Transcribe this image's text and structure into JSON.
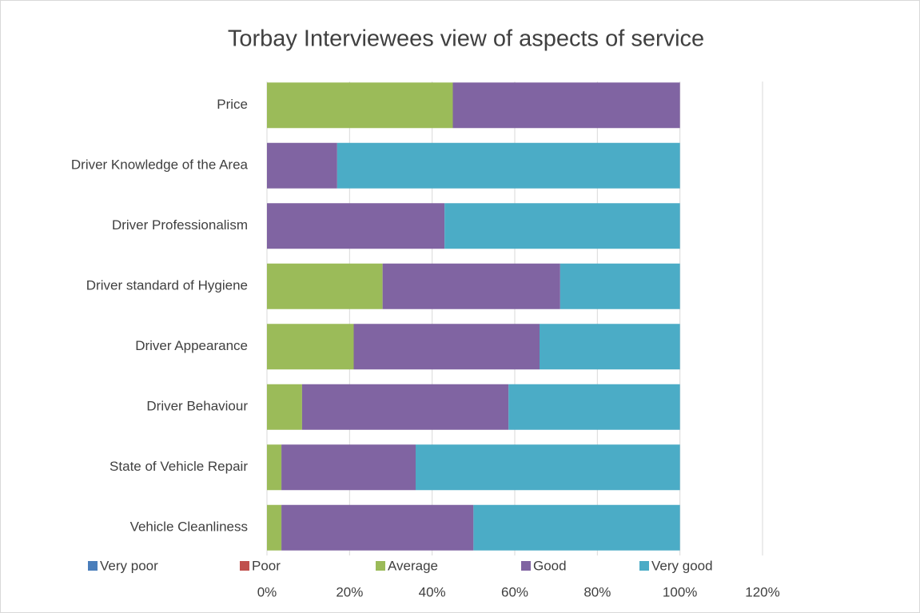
{
  "chart_data": {
    "type": "stacked_bar_horizontal",
    "title": "Torbay Interviewees view of aspects of service",
    "categories": [
      "Price",
      "Driver Knowledge of the Area",
      "Driver Professionalism",
      "Driver standard of Hygiene",
      "Driver Appearance",
      "Driver Behaviour",
      "State of Vehicle Repair",
      "Vehicle Cleanliness"
    ],
    "series": [
      {
        "name": "Very poor",
        "color": "#4a7ebb",
        "values": [
          0,
          0,
          0,
          0,
          0,
          0,
          0,
          0
        ]
      },
      {
        "name": "Poor",
        "color": "#c0504d",
        "values": [
          0,
          0,
          0,
          0,
          0,
          0,
          0,
          0
        ]
      },
      {
        "name": "Average",
        "color": "#9bbb59",
        "values": [
          45,
          0,
          0,
          28,
          21,
          8.5,
          3.5,
          3.5
        ]
      },
      {
        "name": "Good",
        "color": "#8064a2",
        "values": [
          55,
          17,
          43,
          43,
          45,
          50,
          32.5,
          46.5
        ]
      },
      {
        "name": "Very good",
        "color": "#4bacc6",
        "values": [
          0,
          83,
          57,
          29,
          34,
          41.5,
          64,
          50
        ]
      }
    ],
    "xlim": [
      0,
      120
    ],
    "xticks": [
      {
        "value": 0,
        "label": "0%"
      },
      {
        "value": 20,
        "label": "20%"
      },
      {
        "value": 40,
        "label": "40%"
      },
      {
        "value": 60,
        "label": "60%"
      },
      {
        "value": 80,
        "label": "80%"
      },
      {
        "value": 100,
        "label": "100%"
      },
      {
        "value": 120,
        "label": "120%"
      }
    ],
    "grid": true,
    "legend": "bottom"
  }
}
